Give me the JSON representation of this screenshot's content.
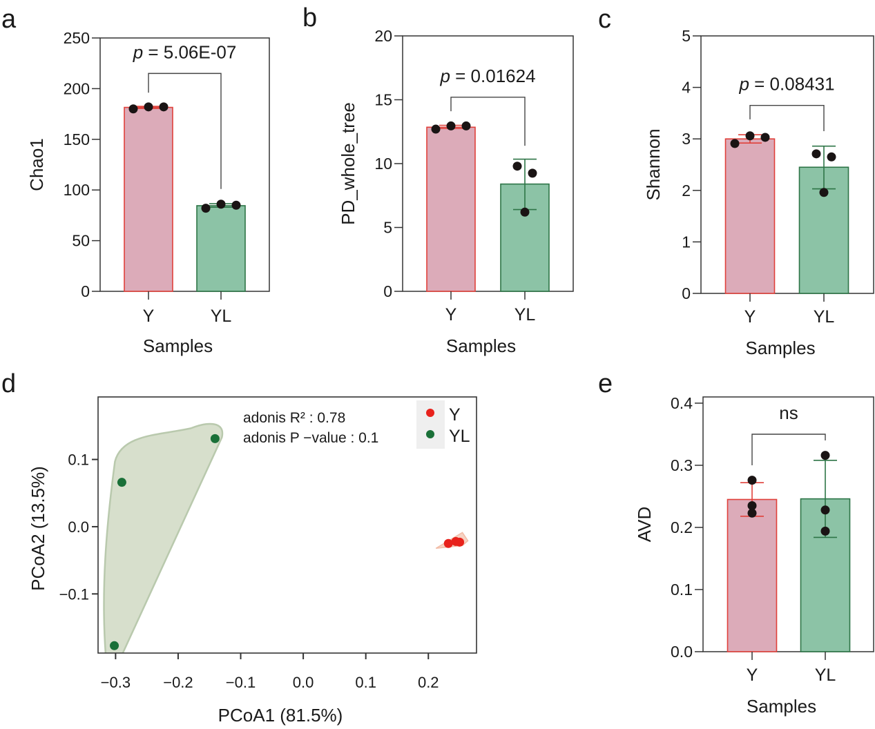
{
  "colors": {
    "y_fill": "#dcabb9",
    "y_stroke": "#e0403a",
    "yl_fill": "#8cc3a6",
    "yl_stroke": "#2d7446",
    "point": "#1a1414",
    "pca_y_point": "#e8221c",
    "pca_yl_point": "#1a7038",
    "pca_yl_hull": "#d7dfcc",
    "pca_yl_hull_stroke": "#b9c9ad",
    "pca_y_hull": "#f6d3c4",
    "legend_bg": "#efefef",
    "axis": "#333333"
  },
  "chart_data": [
    {
      "id": "a",
      "type": "bar",
      "panel_label": "a",
      "title": "",
      "xlabel": "Samples",
      "ylabel": "Chao1",
      "categories": [
        "Y",
        "YL"
      ],
      "values": [
        181.5,
        84.5
      ],
      "error": [
        [
          180.5,
          182.5
        ],
        [
          83.0,
          86.5
        ]
      ],
      "points": [
        [
          180,
          182,
          182
        ],
        [
          82,
          86,
          85
        ]
      ],
      "ylim": [
        0,
        250
      ],
      "yticks": [
        0,
        50,
        100,
        150,
        200,
        250
      ],
      "ytick_labels": [
        "0",
        "50",
        "100",
        "150",
        "200",
        "250"
      ],
      "annotation": {
        "p_symbol": "p",
        "text": " = 5.06E-07"
      },
      "bracket_y": 215,
      "bracket_left_bottom": 196,
      "bracket_right_bottom": 101
    },
    {
      "id": "b",
      "type": "bar",
      "panel_label": "b",
      "title": "",
      "xlabel": "Samples",
      "ylabel": "PD_whole_tree",
      "categories": [
        "Y",
        "YL"
      ],
      "values": [
        12.85,
        8.4
      ],
      "error": [
        [
          12.75,
          13.0
        ],
        [
          6.4,
          10.35
        ]
      ],
      "points": [
        [
          12.7,
          12.95,
          12.95
        ],
        [
          9.8,
          9.25,
          6.2
        ]
      ],
      "ylim": [
        0,
        20
      ],
      "yticks": [
        0,
        5,
        10,
        15,
        20
      ],
      "ytick_labels": [
        "0",
        "5",
        "10",
        "15",
        "20"
      ],
      "annotation": {
        "p_symbol": "p",
        "text": " = 0.01624"
      },
      "bracket_y": 15.2,
      "bracket_left_bottom": 14.1,
      "bracket_right_bottom": 11.4
    },
    {
      "id": "c",
      "type": "bar",
      "panel_label": "c",
      "title": "",
      "xlabel": "Samples",
      "ylabel": "Shannon",
      "categories": [
        "Y",
        "YL"
      ],
      "values": [
        3.0,
        2.45
      ],
      "error": [
        [
          2.92,
          3.08
        ],
        [
          2.03,
          2.86
        ]
      ],
      "points": [
        [
          2.91,
          3.06,
          3.03
        ],
        [
          2.71,
          2.65,
          1.96
        ]
      ],
      "ylim": [
        0,
        5
      ],
      "yticks": [
        0,
        1,
        2,
        3,
        4,
        5
      ],
      "ytick_labels": [
        "0",
        "1",
        "2",
        "3",
        "4",
        "5"
      ],
      "annotation": {
        "p_symbol": "p",
        "text": " = 0.08431"
      },
      "bracket_y": 3.65,
      "bracket_left_bottom": 3.38,
      "bracket_right_bottom": 3.15
    },
    {
      "id": "d",
      "type": "scatter",
      "panel_label": "d",
      "title": "",
      "xlabel": "PCoA1 (81.5%)",
      "ylabel": "PCoA2 (13.5%)",
      "xlim": [
        -0.328,
        0.277
      ],
      "ylim": [
        -0.188,
        0.193
      ],
      "xticks": [
        -0.3,
        -0.2,
        -0.1,
        0.0,
        0.1,
        0.2
      ],
      "xtick_labels": [
        "−0.3",
        "−0.2",
        "−0.1",
        "0.0",
        "0.1",
        "0.2"
      ],
      "yticks": [
        0.1,
        0.0,
        -0.1
      ],
      "ytick_labels": [
        "0.1",
        "0.0",
        "−0.1"
      ],
      "series": [
        {
          "name": "Y",
          "x": [
            0.232,
            0.244,
            0.25
          ],
          "y": [
            -0.025,
            -0.022,
            -0.023
          ]
        },
        {
          "name": "YL",
          "x": [
            -0.141,
            -0.29,
            -0.302
          ],
          "y": [
            0.131,
            0.066,
            -0.177
          ]
        }
      ],
      "annotations": [
        "adonis R² : 0.78",
        "adonis P −value : 0.1"
      ],
      "legend": {
        "position": "top-right",
        "entries": [
          "Y",
          "YL"
        ]
      },
      "grid": false
    },
    {
      "id": "e",
      "type": "bar",
      "panel_label": "e",
      "title": "",
      "xlabel": "Samples",
      "ylabel": "AVD",
      "categories": [
        "Y",
        "YL"
      ],
      "values": [
        0.245,
        0.246
      ],
      "error": [
        [
          0.218,
          0.272
        ],
        [
          0.184,
          0.308
        ]
      ],
      "points": [
        [
          0.276,
          0.235,
          0.223
        ],
        [
          0.316,
          0.228,
          0.194
        ]
      ],
      "ylim": [
        0,
        0.41
      ],
      "yticks": [
        0.0,
        0.1,
        0.2,
        0.3,
        0.4
      ],
      "ytick_labels": [
        "0.0",
        "0.1",
        "0.2",
        "0.3",
        "0.4"
      ],
      "annotation": {
        "p_symbol": "",
        "text": "ns"
      },
      "bracket_y": 0.35,
      "bracket_left_bottom": 0.3,
      "bracket_right_bottom": 0.34
    }
  ]
}
